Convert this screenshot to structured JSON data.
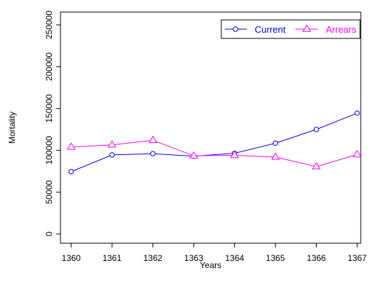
{
  "chart_data": {
    "type": "line",
    "title": "",
    "xlabel": "Years",
    "ylabel": "Mortality",
    "x": [
      1360,
      1361,
      1362,
      1363,
      1364,
      1365,
      1366,
      1367
    ],
    "xticks": [
      "1360",
      "1361",
      "1362",
      "1363",
      "1364",
      "1365",
      "1366",
      "1367"
    ],
    "ylim": [
      0,
      250000
    ],
    "yticks": [
      "0",
      "50000",
      "100000",
      "150000",
      "200000",
      "250000"
    ],
    "grid": false,
    "legend_position": "top-right",
    "series": [
      {
        "name": "Current",
        "color": "#0000ff",
        "marker": "circle",
        "values": [
          74500,
          94500,
          96000,
          93000,
          96500,
          108500,
          125000,
          144500
        ]
      },
      {
        "name": "Arrears",
        "color": "#ff00ff",
        "marker": "triangle",
        "values": [
          104000,
          106500,
          112000,
          93500,
          94000,
          92000,
          80500,
          95000
        ]
      }
    ]
  }
}
